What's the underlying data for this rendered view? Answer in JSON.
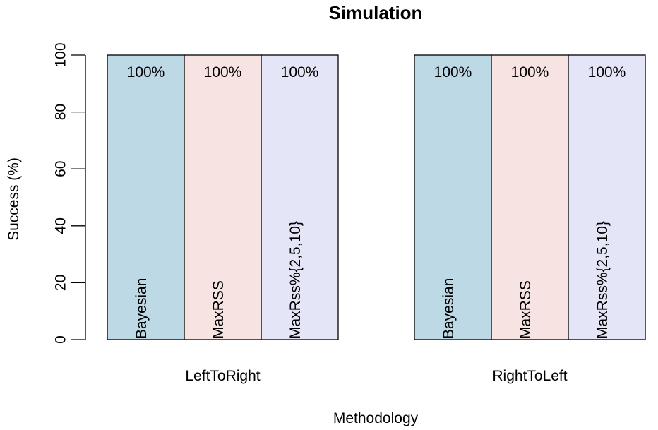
{
  "chart_data": {
    "type": "bar",
    "title": "Simulation",
    "xlabel": "Methodology",
    "ylabel": "Success (%)",
    "ylim": [
      0,
      100
    ],
    "yticks": [
      0,
      20,
      40,
      60,
      80,
      100
    ],
    "grid": false,
    "legend": "none",
    "groups": [
      "LeftToRight",
      "RightToLeft"
    ],
    "series": [
      {
        "name": "Bayesian",
        "color": "#BCD9E5",
        "values": [
          100,
          100
        ],
        "labels": [
          "100%",
          "100%"
        ]
      },
      {
        "name": "MaxRSS",
        "color": "#F7E3E2",
        "values": [
          100,
          100
        ],
        "labels": [
          "100%",
          "100%"
        ]
      },
      {
        "name": "MaxRss%{2,5,10}",
        "color": "#E5E5F8",
        "values": [
          100,
          100
        ],
        "labels": [
          "100%",
          "100%"
        ]
      }
    ]
  }
}
